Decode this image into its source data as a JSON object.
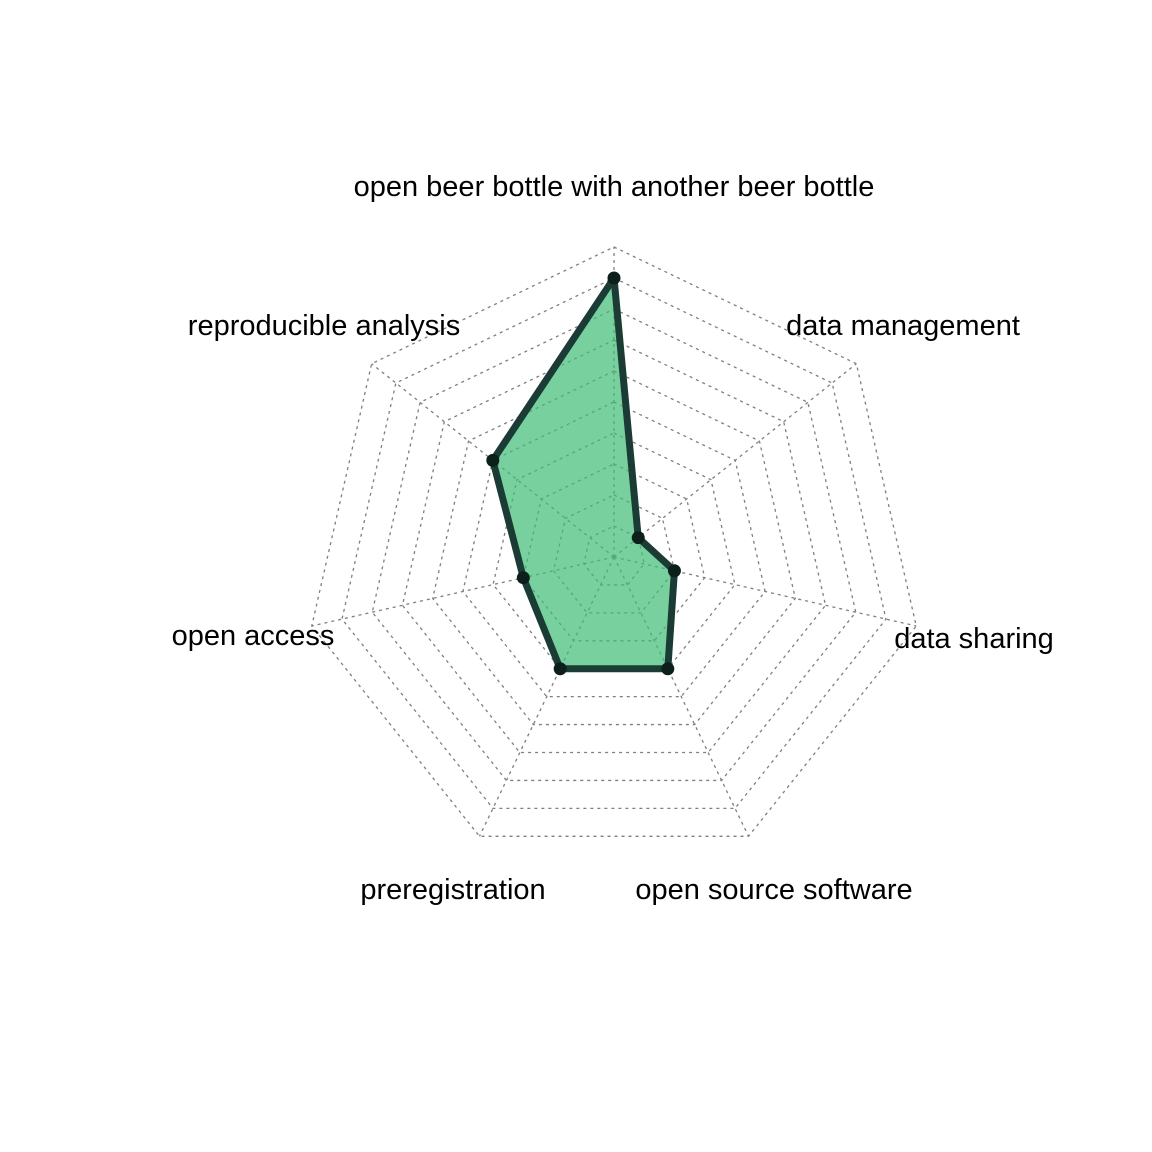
{
  "chart_data": {
    "type": "radar",
    "title": "",
    "axes": [
      "open beer bottle with another beer bottle",
      "data management",
      "data sharing",
      "open source software",
      "preregistration",
      "open access",
      "reproducible analysis"
    ],
    "series": [
      {
        "values": [
          9,
          1,
          2,
          4,
          4,
          3,
          5
        ]
      }
    ],
    "range": [
      0,
      10
    ],
    "grid_levels": 10,
    "grid": true,
    "grid_style": "dotted",
    "colors": {
      "fill": "#3dbc73",
      "fill_opacity": 0.7,
      "line": "#1b3b35",
      "grid": "#7f7f7f"
    }
  }
}
